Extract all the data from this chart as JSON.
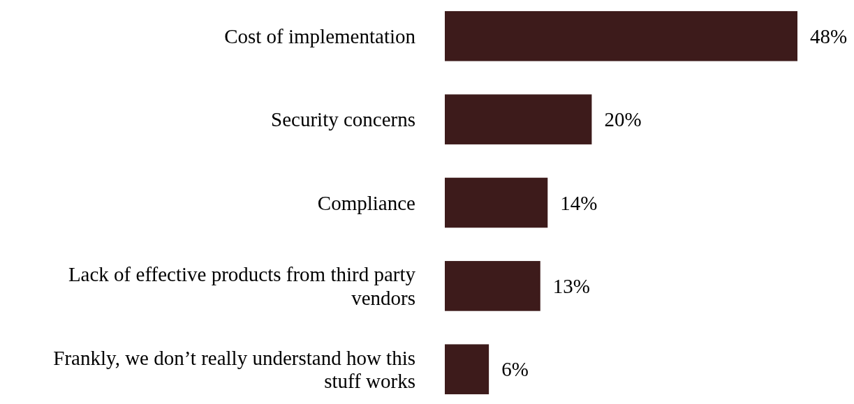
{
  "chart_data": {
    "type": "bar",
    "orientation": "horizontal",
    "categories": [
      "Cost of implementation",
      "Security concerns",
      "Compliance",
      "Lack of effective products from third party vendors",
      "Frankly, we don’t really understand how this stuff works"
    ],
    "values": [
      48,
      20,
      14,
      13,
      6
    ],
    "value_labels": [
      "48%",
      "20%",
      "14%",
      "13%",
      "6%"
    ],
    "color": "#3d1b1b"
  }
}
